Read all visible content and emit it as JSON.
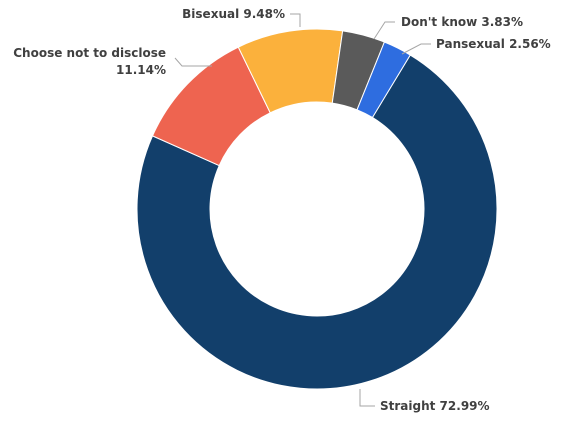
{
  "chart_data": {
    "type": "pie",
    "style": "donut",
    "title": "",
    "categories": [
      "Straight",
      "Choose not to disclose",
      "Bisexual",
      "Don't know",
      "Pansexual"
    ],
    "values": [
      72.99,
      11.14,
      9.48,
      3.83,
      2.56
    ],
    "unit": "%",
    "colors": [
      "#123f6b",
      "#ee6450",
      "#fbb13c",
      "#5a5a5a",
      "#2e6de0"
    ],
    "labels": [
      {
        "category": "Straight",
        "text": "Straight 72.99%"
      },
      {
        "category": "Choose not to disclose",
        "text_lines": [
          "Choose not to disclose",
          "11.14%"
        ]
      },
      {
        "category": "Bisexual",
        "text": "Bisexual 9.48%"
      },
      {
        "category": "Don't know",
        "text": "Don't know 3.83%"
      },
      {
        "category": "Pansexual",
        "text": "Pansexual 2.56%"
      }
    ],
    "legend": "none"
  }
}
